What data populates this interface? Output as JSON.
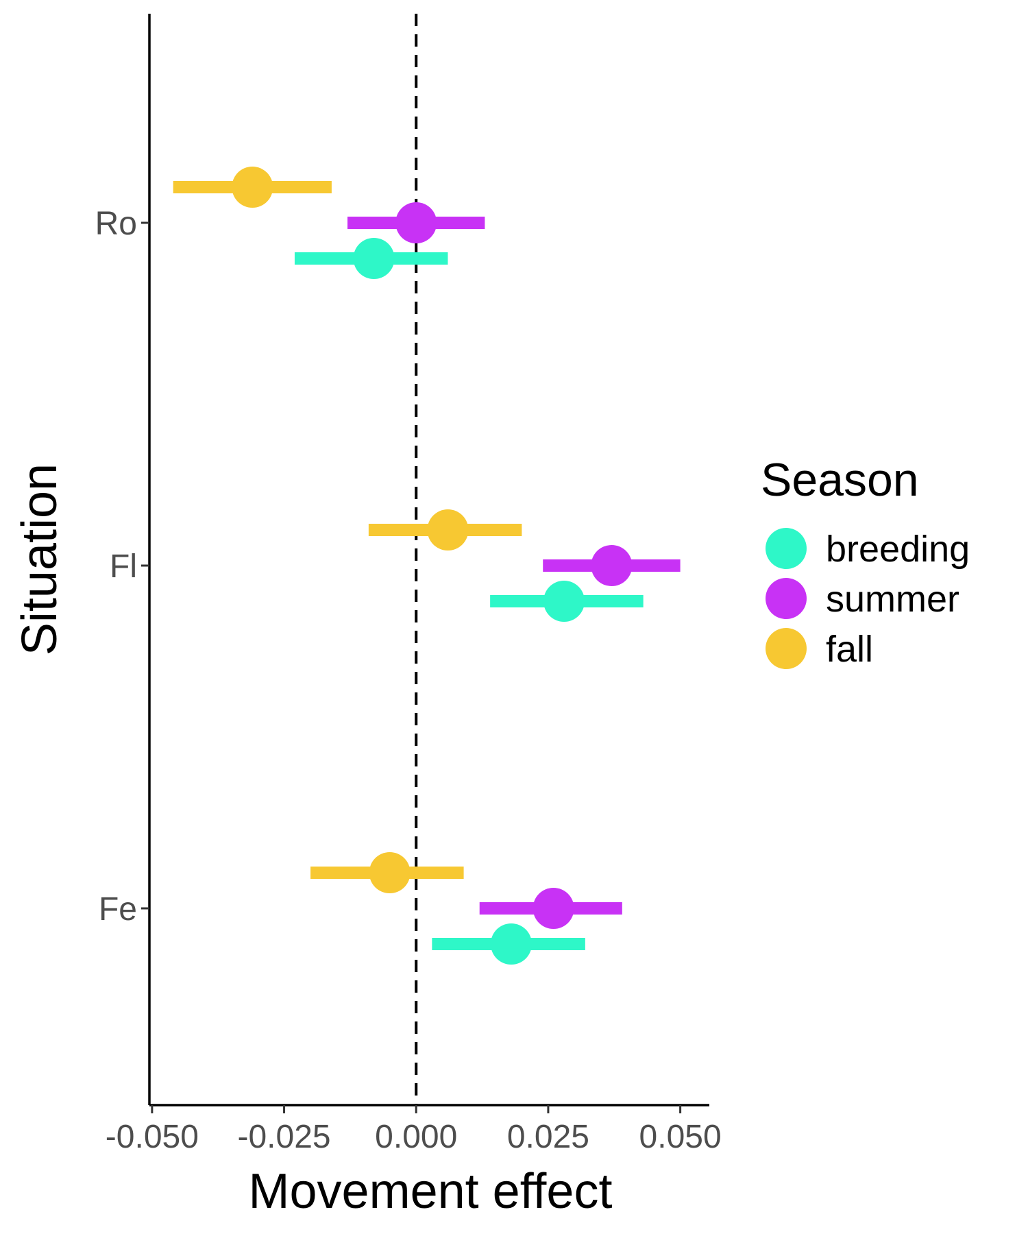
{
  "chart_data": {
    "type": "scatter",
    "xlabel": "Movement effect",
    "ylabel": "Situation",
    "xlim": [
      -0.0505,
      0.0555
    ],
    "x_ticks": [
      {
        "value": -0.05,
        "label": "-0.050"
      },
      {
        "value": -0.025,
        "label": "-0.025"
      },
      {
        "value": 0.0,
        "label": "0.000"
      },
      {
        "value": 0.025,
        "label": "0.025"
      },
      {
        "value": 0.05,
        "label": "0.050"
      }
    ],
    "categories": [
      "Ro",
      "Fl",
      "Fe"
    ],
    "reference_line": {
      "x": 0,
      "style": "dashed"
    },
    "grid": false,
    "legend": {
      "title": "Season",
      "position": "right",
      "entries": [
        {
          "name": "breeding",
          "color": "#2ef7c8"
        },
        {
          "name": "summer",
          "color": "#c832f5"
        },
        {
          "name": "fall",
          "color": "#f7c832"
        }
      ]
    },
    "series": [
      {
        "name": "breeding",
        "color": "#2ef7c8",
        "points": [
          {
            "category": "Ro",
            "x": -0.008,
            "lo": -0.023,
            "hi": 0.006
          },
          {
            "category": "Fl",
            "x": 0.028,
            "lo": 0.014,
            "hi": 0.043
          },
          {
            "category": "Fe",
            "x": 0.018,
            "lo": 0.003,
            "hi": 0.032
          }
        ]
      },
      {
        "name": "summer",
        "color": "#c832f5",
        "points": [
          {
            "category": "Ro",
            "x": 0.0,
            "lo": -0.013,
            "hi": 0.013
          },
          {
            "category": "Fl",
            "x": 0.037,
            "lo": 0.024,
            "hi": 0.05
          },
          {
            "category": "Fe",
            "x": 0.026,
            "lo": 0.012,
            "hi": 0.039
          }
        ]
      },
      {
        "name": "fall",
        "color": "#f7c832",
        "points": [
          {
            "category": "Ro",
            "x": -0.031,
            "lo": -0.046,
            "hi": -0.016
          },
          {
            "category": "Fl",
            "x": 0.006,
            "lo": -0.009,
            "hi": 0.02
          },
          {
            "category": "Fe",
            "x": -0.005,
            "lo": -0.02,
            "hi": 0.009
          }
        ]
      }
    ]
  }
}
